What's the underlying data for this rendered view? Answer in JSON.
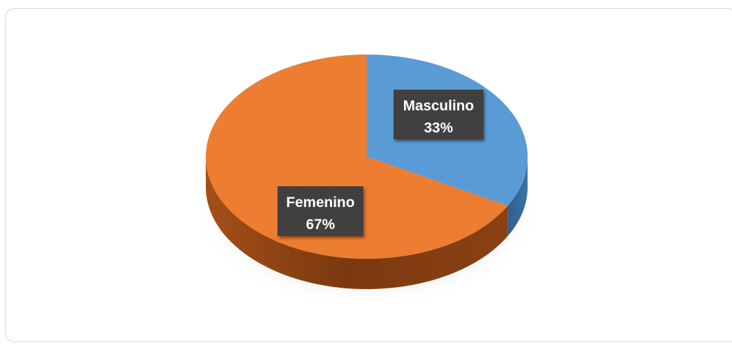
{
  "chart_data": {
    "type": "pie",
    "style": "3d",
    "title": "",
    "slices": [
      {
        "label": "Masculino",
        "value": 33,
        "value_label": "33%",
        "color": "#5B9BD5"
      },
      {
        "label": "Femenino",
        "value": 67,
        "value_label": "67%",
        "color": "#ED7D31"
      }
    ],
    "legend": "none",
    "data_labels": "inside, dark boxes"
  }
}
